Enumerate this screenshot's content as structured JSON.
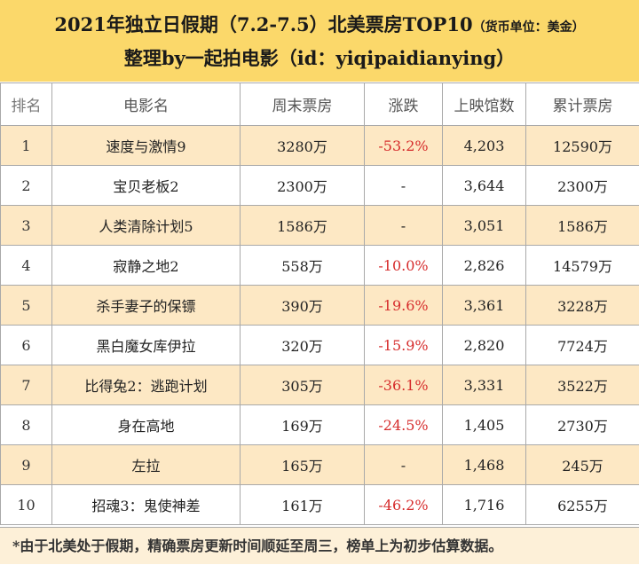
{
  "header": {
    "title": "2021年独立日假期（7.2-7.5）北美票房TOP10",
    "unit_note": "（货币单位：美金）",
    "subtitle": "整理by一起拍电影（id：yiqipaidianying）"
  },
  "table": {
    "columns": [
      "排名",
      "电影名",
      "周末票房",
      "涨跌",
      "上映馆数",
      "累计票房"
    ],
    "rows": [
      {
        "rank": "1",
        "name": "速度与激情9",
        "weekend": "3280万",
        "change": "-53.2%",
        "theaters": "4,203",
        "total": "12590万"
      },
      {
        "rank": "2",
        "name": "宝贝老板2",
        "weekend": "2300万",
        "change": "-",
        "theaters": "3,644",
        "total": "2300万"
      },
      {
        "rank": "3",
        "name": "人类清除计划5",
        "weekend": "1586万",
        "change": "-",
        "theaters": "3,051",
        "total": "1586万"
      },
      {
        "rank": "4",
        "name": "寂静之地2",
        "weekend": "558万",
        "change": "-10.0%",
        "theaters": "2,826",
        "total": "14579万"
      },
      {
        "rank": "5",
        "name": "杀手妻子的保镖",
        "weekend": "390万",
        "change": "-19.6%",
        "theaters": "3,361",
        "total": "3228万"
      },
      {
        "rank": "6",
        "name": "黑白魔女库伊拉",
        "weekend": "320万",
        "change": "-15.9%",
        "theaters": "2,820",
        "total": "7724万"
      },
      {
        "rank": "7",
        "name": "比得兔2：逃跑计划",
        "weekend": "305万",
        "change": "-36.1%",
        "theaters": "3,331",
        "total": "3522万"
      },
      {
        "rank": "8",
        "name": "身在高地",
        "weekend": "169万",
        "change": "-24.5%",
        "theaters": "1,405",
        "total": "2730万"
      },
      {
        "rank": "9",
        "name": "左拉",
        "weekend": "165万",
        "change": "-",
        "theaters": "1,468",
        "total": "245万"
      },
      {
        "rank": "10",
        "name": "招魂3：鬼使神差",
        "weekend": "161万",
        "change": "-46.2%",
        "theaters": "1,716",
        "total": "6255万"
      }
    ]
  },
  "footer": {
    "note": "*由于北美处于假期，精确票房更新时间顺延至周三，榜单上为初步估算数据。"
  },
  "colors": {
    "header_bg": "#fbd86a",
    "stripe_bg": "#fde8c4",
    "negative": "#d62c2c"
  }
}
